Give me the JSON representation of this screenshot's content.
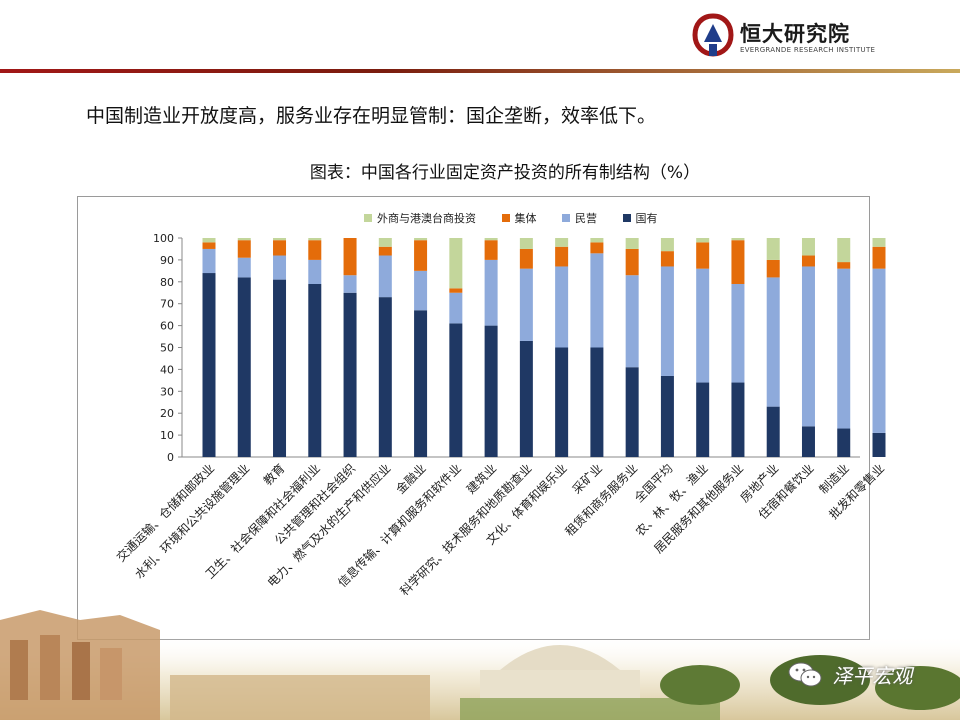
{
  "brand": {
    "name": "恒大研究院",
    "subtitle": "EVERGRANDE RESEARCH INSTITUTE"
  },
  "headline": "中国制造业开放度高，服务业存在明显管制：国企垄断，效率低下。",
  "watermark": "泽平宏观",
  "colors": {
    "state": "#1f3864",
    "private": "#8eaadb",
    "collective": "#e46c0a",
    "foreign": "#c3d69b",
    "brand_red": "#a11717"
  },
  "chart_data": {
    "type": "bar",
    "stacked": true,
    "title": "图表：中国各行业固定资产投资的所有制结构（%）",
    "xlabel": "",
    "ylabel": "",
    "ylim": [
      0,
      100
    ],
    "yticks": [
      "0",
      "10",
      "20",
      "30",
      "40",
      "50",
      "60",
      "70",
      "80",
      "90",
      "100"
    ],
    "grid": false,
    "legend_position": "top",
    "legend": [
      "外商与港澳台商投资",
      "集体",
      "民营",
      "国有"
    ],
    "categories": [
      "交通运输、仓储和邮政业",
      "水利、环境和公共设施管理业",
      "教育",
      "卫生、社会保障和社会福利业",
      "公共管理和社会组织",
      "电力、燃气及水的生产和供应业",
      "金融业",
      "信息传输、计算机服务和软件业",
      "建筑业",
      "科学研究、技术服务和地质勘查业",
      "文化、体育和娱乐业",
      "采矿业",
      "租赁和商务服务业",
      "全国平均",
      "农、林、牧、渔业",
      "居民服务和其他服务业",
      "房地产业",
      "住宿和餐饮业",
      "制造业",
      "批发和零售业"
    ],
    "series": [
      {
        "name": "国有",
        "values": [
          84,
          82,
          81,
          79,
          75,
          73,
          67,
          61,
          60,
          53,
          50,
          50,
          41,
          37,
          34,
          34,
          23,
          14,
          13,
          11
        ]
      },
      {
        "name": "民营",
        "values": [
          11,
          9,
          11,
          11,
          8,
          19,
          18,
          14,
          30,
          33,
          37,
          43,
          42,
          50,
          52,
          45,
          59,
          73,
          73,
          75
        ]
      },
      {
        "name": "集体",
        "values": [
          3,
          8,
          7,
          9,
          17,
          4,
          14,
          2,
          9,
          9,
          9,
          5,
          12,
          7,
          12,
          20,
          8,
          5,
          3,
          10
        ]
      },
      {
        "name": "外商与港澳台商投资",
        "values": [
          2,
          1,
          1,
          1,
          0,
          4,
          1,
          23,
          1,
          5,
          4,
          2,
          5,
          6,
          2,
          1,
          10,
          8,
          11,
          4
        ]
      }
    ]
  }
}
